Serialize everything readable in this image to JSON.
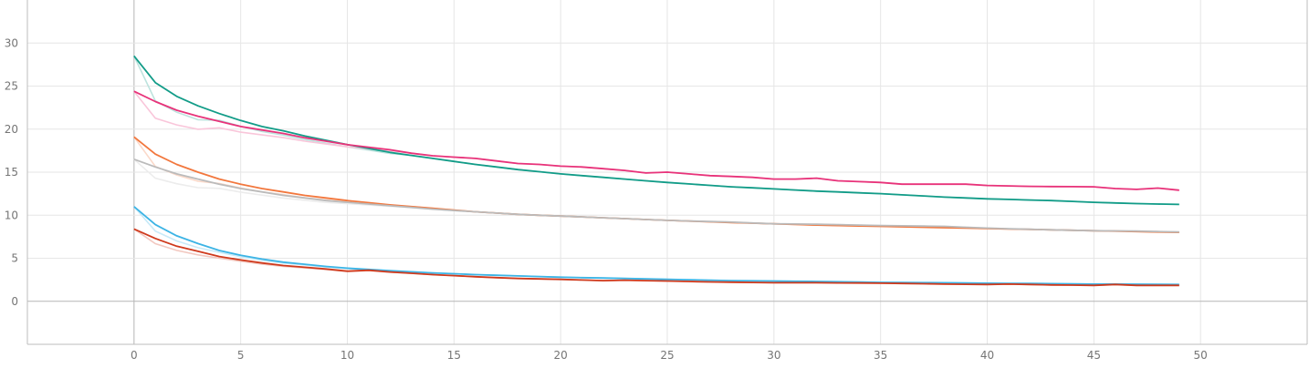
{
  "chart_data": {
    "type": "line",
    "xlim": [
      -5,
      55
    ],
    "ylim": [
      -5,
      35
    ],
    "x_ticks": [
      0,
      5,
      10,
      15,
      20,
      25,
      30,
      35,
      40,
      45,
      50
    ],
    "x_tick_labels": [
      "0",
      "5",
      "10",
      "15",
      "20",
      "25",
      "30",
      "35",
      "40",
      "45",
      "50"
    ],
    "y_ticks": [
      0,
      5,
      10,
      15,
      20,
      25,
      30
    ],
    "y_tick_labels": [
      "0",
      "5",
      "10",
      "15",
      "20",
      "25",
      "30"
    ],
    "grid": true,
    "smoothing_shown": true,
    "series": [
      {
        "color": "#129c88",
        "anchors": [
          [
            0,
            28.5
          ],
          [
            1,
            25.4
          ],
          [
            2,
            23.8
          ],
          [
            3,
            22.7
          ],
          [
            4,
            21.8
          ],
          [
            5,
            21.0
          ],
          [
            6,
            20.3
          ],
          [
            7,
            19.8
          ],
          [
            8,
            19.2
          ],
          [
            9,
            18.7
          ],
          [
            10,
            18.2
          ],
          [
            12,
            17.3
          ],
          [
            14,
            16.6
          ],
          [
            16,
            15.9
          ],
          [
            18,
            15.3
          ],
          [
            20,
            14.8
          ],
          [
            22,
            14.4
          ],
          [
            25,
            13.8
          ],
          [
            28,
            13.3
          ],
          [
            30,
            13.05
          ],
          [
            32,
            12.8
          ],
          [
            35,
            12.5
          ],
          [
            38,
            12.1
          ],
          [
            40,
            11.9
          ],
          [
            43,
            11.7
          ],
          [
            45,
            11.5
          ],
          [
            47,
            11.35
          ],
          [
            49,
            11.25
          ]
        ]
      },
      {
        "color": "#e8337a",
        "anchors": [
          [
            0,
            24.4
          ],
          [
            1,
            23.2
          ],
          [
            2,
            22.2
          ],
          [
            3,
            21.5
          ],
          [
            4,
            20.9
          ],
          [
            5,
            20.3
          ],
          [
            6,
            19.9
          ],
          [
            7,
            19.5
          ],
          [
            8,
            19.0
          ],
          [
            9,
            18.6
          ],
          [
            10,
            18.2
          ],
          [
            12,
            17.6
          ],
          [
            13,
            17.2
          ],
          [
            14,
            16.9
          ],
          [
            16,
            16.6
          ],
          [
            17,
            16.3
          ],
          [
            18,
            16.0
          ],
          [
            19,
            15.9
          ],
          [
            20,
            15.7
          ],
          [
            21,
            15.6
          ],
          [
            22,
            15.4
          ],
          [
            23,
            15.2
          ],
          [
            24,
            14.9
          ],
          [
            25,
            15.0
          ],
          [
            26,
            14.8
          ],
          [
            27,
            14.6
          ],
          [
            29,
            14.4
          ],
          [
            30,
            14.2
          ],
          [
            31,
            14.2
          ],
          [
            32,
            14.3
          ],
          [
            33,
            14.0
          ],
          [
            34,
            13.9
          ],
          [
            35,
            13.8
          ],
          [
            36,
            13.6
          ],
          [
            38,
            13.6
          ],
          [
            39,
            13.6
          ],
          [
            40,
            13.45
          ],
          [
            42,
            13.35
          ],
          [
            45,
            13.3
          ],
          [
            46,
            13.1
          ],
          [
            47,
            13.0
          ],
          [
            48,
            13.15
          ],
          [
            49,
            12.9
          ]
        ]
      },
      {
        "color": "#f2773d",
        "anchors": [
          [
            0,
            19.1
          ],
          [
            1,
            17.1
          ],
          [
            2,
            15.9
          ],
          [
            3,
            15.0
          ],
          [
            4,
            14.2
          ],
          [
            5,
            13.6
          ],
          [
            6,
            13.1
          ],
          [
            7,
            12.7
          ],
          [
            8,
            12.3
          ],
          [
            9,
            12.0
          ],
          [
            10,
            11.7
          ],
          [
            12,
            11.2
          ],
          [
            14,
            10.8
          ],
          [
            16,
            10.4
          ],
          [
            18,
            10.1
          ],
          [
            20,
            9.9
          ],
          [
            22,
            9.7
          ],
          [
            25,
            9.4
          ],
          [
            28,
            9.15
          ],
          [
            30,
            9.0
          ],
          [
            32,
            8.85
          ],
          [
            35,
            8.7
          ],
          [
            38,
            8.55
          ],
          [
            40,
            8.45
          ],
          [
            43,
            8.3
          ],
          [
            45,
            8.2
          ],
          [
            47,
            8.1
          ],
          [
            49,
            8.0
          ]
        ]
      },
      {
        "color": "#bbbbbb",
        "anchors": [
          [
            0,
            16.5
          ],
          [
            1,
            15.6
          ],
          [
            2,
            14.8
          ],
          [
            3,
            14.2
          ],
          [
            4,
            13.6
          ],
          [
            5,
            13.1
          ],
          [
            6,
            12.7
          ],
          [
            7,
            12.3
          ],
          [
            8,
            12.0
          ],
          [
            9,
            11.7
          ],
          [
            10,
            11.5
          ],
          [
            12,
            11.1
          ],
          [
            14,
            10.7
          ],
          [
            16,
            10.4
          ],
          [
            18,
            10.1
          ],
          [
            20,
            9.9
          ],
          [
            22,
            9.7
          ],
          [
            25,
            9.4
          ],
          [
            28,
            9.2
          ],
          [
            30,
            9.0
          ],
          [
            32,
            8.95
          ],
          [
            35,
            8.8
          ],
          [
            38,
            8.7
          ],
          [
            40,
            8.5
          ],
          [
            43,
            8.3
          ],
          [
            45,
            8.2
          ],
          [
            47,
            8.15
          ],
          [
            49,
            8.05
          ]
        ]
      },
      {
        "color": "#3cb4e5",
        "anchors": [
          [
            0,
            11.0
          ],
          [
            1,
            8.9
          ],
          [
            2,
            7.6
          ],
          [
            3,
            6.7
          ],
          [
            4,
            5.9
          ],
          [
            5,
            5.35
          ],
          [
            6,
            4.9
          ],
          [
            7,
            4.55
          ],
          [
            8,
            4.3
          ],
          [
            9,
            4.05
          ],
          [
            10,
            3.85
          ],
          [
            12,
            3.55
          ],
          [
            14,
            3.3
          ],
          [
            16,
            3.1
          ],
          [
            18,
            2.95
          ],
          [
            20,
            2.8
          ],
          [
            22,
            2.7
          ],
          [
            25,
            2.55
          ],
          [
            28,
            2.4
          ],
          [
            30,
            2.35
          ],
          [
            32,
            2.3
          ],
          [
            35,
            2.2
          ],
          [
            38,
            2.15
          ],
          [
            40,
            2.1
          ],
          [
            43,
            2.05
          ],
          [
            45,
            2.0
          ],
          [
            47,
            1.98
          ],
          [
            49,
            1.95
          ]
        ]
      },
      {
        "color": "#cf3a1d",
        "anchors": [
          [
            0,
            8.4
          ],
          [
            1,
            7.3
          ],
          [
            2,
            6.4
          ],
          [
            3,
            5.8
          ],
          [
            4,
            5.2
          ],
          [
            5,
            4.8
          ],
          [
            6,
            4.45
          ],
          [
            7,
            4.15
          ],
          [
            8,
            3.95
          ],
          [
            9,
            3.75
          ],
          [
            10,
            3.5
          ],
          [
            11,
            3.6
          ],
          [
            12,
            3.4
          ],
          [
            14,
            3.1
          ],
          [
            16,
            2.85
          ],
          [
            18,
            2.65
          ],
          [
            20,
            2.55
          ],
          [
            22,
            2.4
          ],
          [
            23,
            2.45
          ],
          [
            25,
            2.35
          ],
          [
            27,
            2.25
          ],
          [
            30,
            2.15
          ],
          [
            32,
            2.15
          ],
          [
            35,
            2.1
          ],
          [
            38,
            2.0
          ],
          [
            40,
            1.95
          ],
          [
            41,
            2.0
          ],
          [
            43,
            1.9
          ],
          [
            45,
            1.85
          ],
          [
            46,
            1.95
          ],
          [
            47,
            1.85
          ],
          [
            49,
            1.85
          ]
        ]
      }
    ]
  }
}
